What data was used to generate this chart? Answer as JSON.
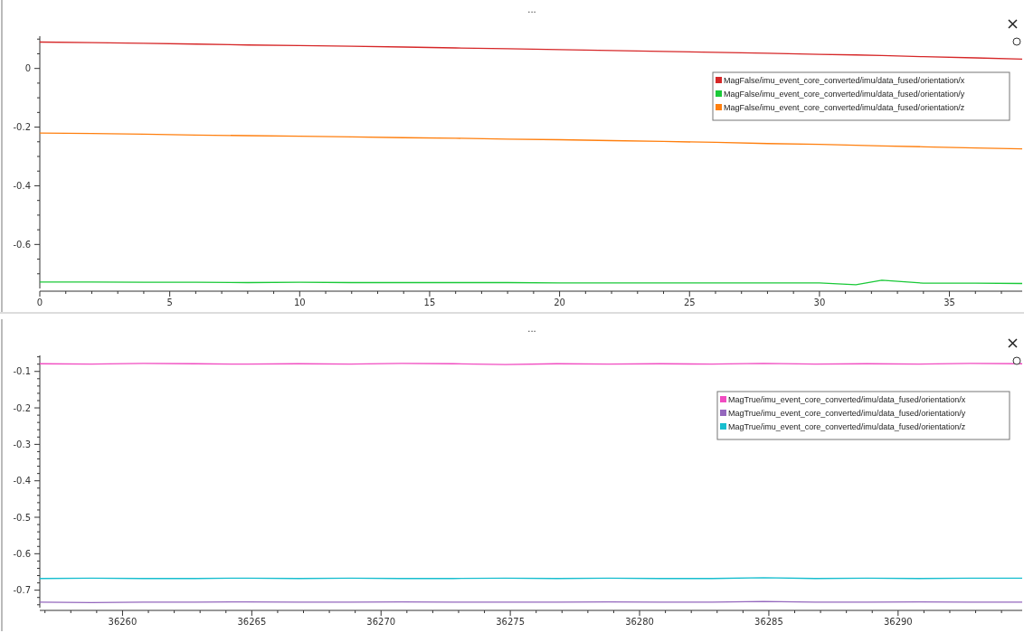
{
  "chart_data": [
    {
      "type": "line",
      "title": "...",
      "legend": "top right",
      "grid": false,
      "marker": "none",
      "line_style": "solid",
      "x": [
        0,
        2,
        4,
        6,
        8,
        10,
        12,
        14,
        16,
        18,
        20,
        22,
        24,
        26,
        28,
        30,
        31.4,
        32.4,
        34,
        36,
        37.8
      ],
      "xlim": [
        0,
        37.8
      ],
      "xticks": [
        0,
        {
          "value": 1,
          "label": null
        },
        {
          "value": 2,
          "label": null
        },
        {
          "value": 3,
          "label": null
        },
        {
          "value": 4,
          "label": null
        },
        5,
        {
          "value": 6,
          "label": null
        },
        {
          "value": 7,
          "label": null
        },
        {
          "value": 8,
          "label": null
        },
        {
          "value": 9,
          "label": null
        },
        10,
        {
          "value": 11,
          "label": null
        },
        {
          "value": 12,
          "label": null
        },
        {
          "value": 13,
          "label": null
        },
        {
          "value": 14,
          "label": null
        },
        15,
        {
          "value": 16,
          "label": null
        },
        {
          "value": 17,
          "label": null
        },
        {
          "value": 18,
          "label": null
        },
        {
          "value": 19,
          "label": null
        },
        20,
        {
          "value": 21,
          "label": null
        },
        {
          "value": 22,
          "label": null
        },
        {
          "value": 23,
          "label": null
        },
        {
          "value": 24,
          "label": null
        },
        25,
        {
          "value": 26,
          "label": null
        },
        {
          "value": 27,
          "label": null
        },
        {
          "value": 28,
          "label": null
        },
        {
          "value": 29,
          "label": null
        },
        30,
        {
          "value": 31,
          "label": null
        },
        {
          "value": 32,
          "label": null
        },
        {
          "value": 33,
          "label": null
        },
        {
          "value": 34,
          "label": null
        },
        35,
        {
          "value": 36,
          "label": null
        },
        {
          "value": 37,
          "label": null
        }
      ],
      "ylim": [
        -0.75,
        0.11
      ],
      "yticks": [
        {
          "value": 0.1,
          "label": null
        },
        {
          "value": 0.05,
          "label": null
        },
        0,
        {
          "value": -0.05,
          "label": null
        },
        {
          "value": -0.1,
          "label": null
        },
        {
          "value": -0.15,
          "label": null
        },
        -0.2,
        {
          "value": -0.25,
          "label": null
        },
        {
          "value": -0.3,
          "label": null
        },
        {
          "value": -0.35,
          "label": null
        },
        -0.4,
        {
          "value": -0.45,
          "label": null
        },
        {
          "value": -0.5,
          "label": null
        },
        {
          "value": -0.55,
          "label": null
        },
        -0.6,
        {
          "value": -0.65,
          "label": null
        },
        {
          "value": -0.7,
          "label": null
        }
      ],
      "series": [
        {
          "name": "MagFalse/imu_event_core_converted/imu/data_fused/orientation/x",
          "color": "#d62728",
          "values": [
            0.09,
            0.088,
            0.086,
            0.083,
            0.08,
            0.078,
            0.076,
            0.073,
            0.07,
            0.067,
            0.064,
            0.061,
            0.058,
            0.055,
            0.052,
            0.048,
            0.046,
            0.044,
            0.04,
            0.036,
            0.032
          ]
        },
        {
          "name": "MagFalse/imu_event_core_converted/imu/data_fused/orientation/y",
          "color": "#1ac938",
          "values": [
            -0.728,
            -0.728,
            -0.729,
            -0.729,
            -0.73,
            -0.729,
            -0.73,
            -0.73,
            -0.73,
            -0.73,
            -0.731,
            -0.731,
            -0.731,
            -0.731,
            -0.731,
            -0.731,
            -0.737,
            -0.722,
            -0.732,
            -0.732,
            -0.733
          ]
        },
        {
          "name": "MagFalse/imu_event_core_converted/imu/data_fused/orientation/z",
          "color": "#ff7f0e",
          "values": [
            -0.22,
            -0.222,
            -0.224,
            -0.227,
            -0.229,
            -0.231,
            -0.233,
            -0.236,
            -0.238,
            -0.241,
            -0.243,
            -0.246,
            -0.249,
            -0.252,
            -0.256,
            -0.259,
            -0.262,
            -0.264,
            -0.267,
            -0.271,
            -0.274
          ]
        }
      ]
    },
    {
      "type": "line",
      "title": "...",
      "legend": "top right",
      "grid": false,
      "marker": "none",
      "line_style": "solid",
      "x": [
        36256.8,
        36258.8,
        36260.8,
        36262.8,
        36264.8,
        36266.8,
        36268.8,
        36270.8,
        36272.8,
        36274.8,
        36276.8,
        36278.8,
        36280.8,
        36282.8,
        36284.8,
        36286.8,
        36288.8,
        36290.8,
        36292.8,
        36294.8
      ],
      "xlim": [
        36256.8,
        36294.8
      ],
      "xticks": [
        {
          "value": 36257,
          "label": null
        },
        {
          "value": 36258,
          "label": null
        },
        {
          "value": 36259,
          "label": null
        },
        36260,
        {
          "value": 36261,
          "label": null
        },
        {
          "value": 36262,
          "label": null
        },
        {
          "value": 36263,
          "label": null
        },
        {
          "value": 36264,
          "label": null
        },
        36265,
        {
          "value": 36266,
          "label": null
        },
        {
          "value": 36267,
          "label": null
        },
        {
          "value": 36268,
          "label": null
        },
        {
          "value": 36269,
          "label": null
        },
        36270,
        {
          "value": 36271,
          "label": null
        },
        {
          "value": 36272,
          "label": null
        },
        {
          "value": 36273,
          "label": null
        },
        {
          "value": 36274,
          "label": null
        },
        36275,
        {
          "value": 36276,
          "label": null
        },
        {
          "value": 36277,
          "label": null
        },
        {
          "value": 36278,
          "label": null
        },
        {
          "value": 36279,
          "label": null
        },
        36280,
        {
          "value": 36281,
          "label": null
        },
        {
          "value": 36282,
          "label": null
        },
        {
          "value": 36283,
          "label": null
        },
        {
          "value": 36284,
          "label": null
        },
        36285,
        {
          "value": 36286,
          "label": null
        },
        {
          "value": 36287,
          "label": null
        },
        {
          "value": 36288,
          "label": null
        },
        {
          "value": 36289,
          "label": null
        },
        36290,
        {
          "value": 36291,
          "label": null
        },
        {
          "value": 36292,
          "label": null
        },
        {
          "value": 36293,
          "label": null
        },
        {
          "value": 36294,
          "label": null
        }
      ],
      "ylim": [
        -0.748,
        -0.056
      ],
      "yticks": [
        {
          "value": -0.06,
          "label": null
        },
        {
          "value": -0.08,
          "label": null
        },
        -0.1,
        {
          "value": -0.12,
          "label": null
        },
        {
          "value": -0.14,
          "label": null
        },
        {
          "value": -0.16,
          "label": null
        },
        {
          "value": -0.18,
          "label": null
        },
        -0.2,
        {
          "value": -0.22,
          "label": null
        },
        {
          "value": -0.24,
          "label": null
        },
        {
          "value": -0.26,
          "label": null
        },
        {
          "value": -0.28,
          "label": null
        },
        -0.3,
        {
          "value": -0.32,
          "label": null
        },
        {
          "value": -0.34,
          "label": null
        },
        {
          "value": -0.36,
          "label": null
        },
        {
          "value": -0.38,
          "label": null
        },
        -0.4,
        {
          "value": -0.42,
          "label": null
        },
        {
          "value": -0.44,
          "label": null
        },
        {
          "value": -0.46,
          "label": null
        },
        {
          "value": -0.48,
          "label": null
        },
        -0.5,
        {
          "value": -0.52,
          "label": null
        },
        {
          "value": -0.54,
          "label": null
        },
        {
          "value": -0.56,
          "label": null
        },
        {
          "value": -0.58,
          "label": null
        },
        -0.6,
        {
          "value": -0.62,
          "label": null
        },
        {
          "value": -0.64,
          "label": null
        },
        {
          "value": -0.66,
          "label": null
        },
        {
          "value": -0.68,
          "label": null
        },
        -0.7,
        {
          "value": -0.72,
          "label": null
        },
        {
          "value": -0.74,
          "label": null
        }
      ],
      "series": [
        {
          "name": "MagTrue/imu_event_core_converted/imu/data_fused/orientation/x",
          "color": "#f14cc1",
          "values": [
            -0.079,
            -0.08,
            -0.078,
            -0.079,
            -0.08,
            -0.079,
            -0.08,
            -0.078,
            -0.079,
            -0.081,
            -0.079,
            -0.08,
            -0.079,
            -0.08,
            -0.078,
            -0.08,
            -0.079,
            -0.08,
            -0.078,
            -0.079
          ]
        },
        {
          "name": "MagTrue/imu_event_core_converted/imu/data_fused/orientation/y",
          "color": "#9467bd",
          "values": [
            -0.733,
            -0.734,
            -0.733,
            -0.733,
            -0.732,
            -0.733,
            -0.733,
            -0.732,
            -0.733,
            -0.733,
            -0.733,
            -0.732,
            -0.733,
            -0.733,
            -0.731,
            -0.733,
            -0.733,
            -0.732,
            -0.733,
            -0.733
          ]
        },
        {
          "name": "MagTrue/imu_event_core_converted/imu/data_fused/orientation/z",
          "color": "#17becf",
          "values": [
            -0.668,
            -0.667,
            -0.668,
            -0.668,
            -0.667,
            -0.668,
            -0.667,
            -0.668,
            -0.668,
            -0.667,
            -0.668,
            -0.667,
            -0.668,
            -0.668,
            -0.666,
            -0.668,
            -0.667,
            -0.668,
            -0.667,
            -0.667
          ]
        }
      ]
    }
  ]
}
